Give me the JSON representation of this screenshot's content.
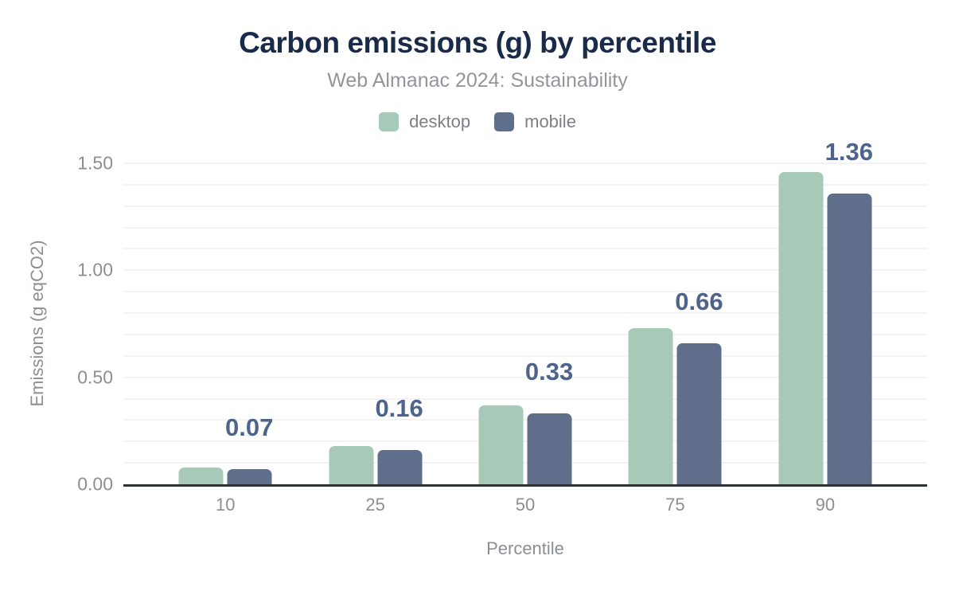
{
  "chart_data": {
    "type": "bar",
    "title": "Carbon emissions (g) by percentile",
    "subtitle": "Web Almanac 2024: Sustainability",
    "xlabel": "Percentile",
    "ylabel": "Emissions (g eqCO2)",
    "categories": [
      "10",
      "25",
      "50",
      "75",
      "90"
    ],
    "series": [
      {
        "name": "desktop",
        "color": "#a7cab8",
        "values": [
          0.08,
          0.18,
          0.37,
          0.73,
          1.46
        ]
      },
      {
        "name": "mobile",
        "color": "#5f6f8b",
        "values": [
          0.07,
          0.16,
          0.33,
          0.66,
          1.36
        ],
        "data_labels": [
          "0.07",
          "0.16",
          "0.33",
          "0.66",
          "1.36"
        ]
      }
    ],
    "ylim": [
      0,
      1.5
    ],
    "yticks": [
      {
        "label": "0.00",
        "value": 0
      },
      {
        "label": "0.50",
        "value": 0.5
      },
      {
        "label": "1.00",
        "value": 1.0
      },
      {
        "label": "1.50",
        "value": 1.5
      }
    ],
    "grid": {
      "show": true,
      "minor_step": 0.1
    },
    "legend_position": "top"
  },
  "colors": {
    "background": "#ffffff",
    "title": "#1a2b49",
    "subtitle": "#92959a",
    "axis_text": "#8b8f93",
    "legend_text": "#7c8084",
    "data_label": "#4e648a",
    "axis_line": "#303336",
    "gridline": "#f3f3f3"
  }
}
